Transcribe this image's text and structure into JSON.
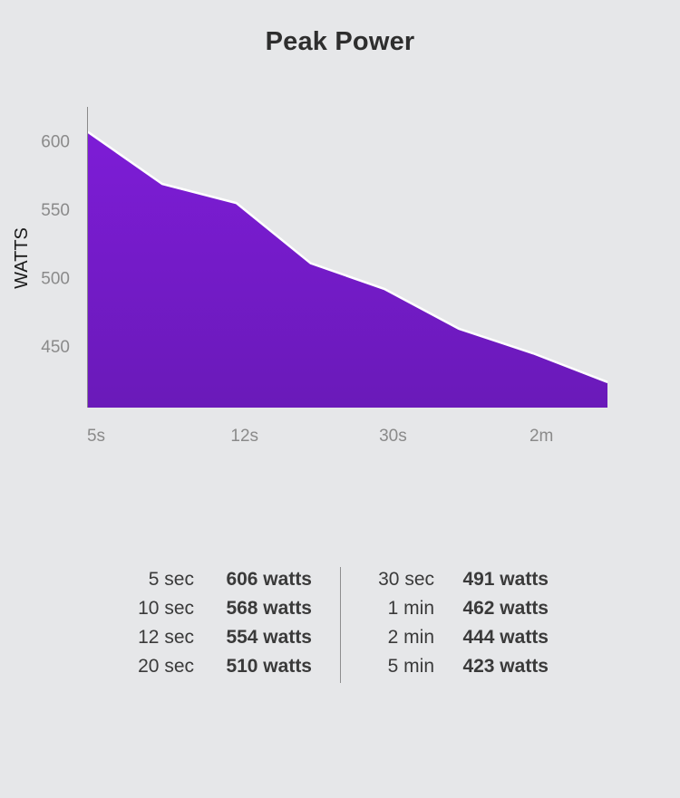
{
  "page": {
    "title": "Peak Power"
  },
  "chart_data": {
    "type": "area",
    "title": "Peak Power",
    "xlabel": "",
    "ylabel": "WATTS",
    "x_tick_labels": [
      "5s",
      "12s",
      "30s",
      "2m"
    ],
    "y_ticks": [
      600,
      550,
      500,
      450
    ],
    "ylim": [
      405,
      625
    ],
    "grid": false,
    "series": [
      {
        "labels": [
          "5s",
          "10s",
          "12s",
          "20s",
          "30s",
          "1m",
          "2m",
          "5m"
        ],
        "values": [
          606,
          568,
          554,
          510,
          491,
          462,
          444,
          423
        ],
        "color": "#781cd0"
      }
    ]
  },
  "stats": {
    "left": [
      {
        "label": "5 sec",
        "value": "606 watts"
      },
      {
        "label": "10 sec",
        "value": "568 watts"
      },
      {
        "label": "12 sec",
        "value": "554 watts"
      },
      {
        "label": "20 sec",
        "value": "510 watts"
      }
    ],
    "right": [
      {
        "label": "30 sec",
        "value": "491 watts"
      },
      {
        "label": "1 min",
        "value": "462 watts"
      },
      {
        "label": "2 min",
        "value": "444 watts"
      },
      {
        "label": "5 min",
        "value": "423 watts"
      }
    ]
  },
  "colors": {
    "background": "#e6e7e9",
    "area_top": "#7d1cd6",
    "area_bottom": "#6a1ab9",
    "outline": "#ffffff",
    "axis_text": "#8a8a8a"
  }
}
